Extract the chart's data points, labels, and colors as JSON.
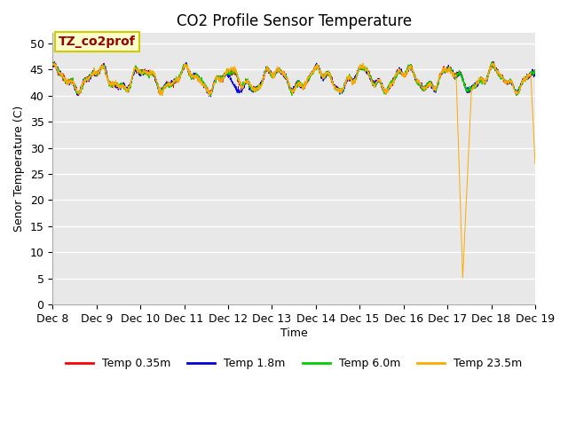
{
  "title": "CO2 Profile Sensor Temperature",
  "ylabel": "Senor Temperature (C)",
  "xlabel": "Time",
  "xlim": [
    0,
    11
  ],
  "ylim": [
    0,
    52
  ],
  "yticks": [
    0,
    5,
    10,
    15,
    20,
    25,
    30,
    35,
    40,
    45,
    50
  ],
  "xtick_labels": [
    "Dec 8",
    "Dec 9",
    "Dec 10",
    "Dec 11",
    "Dec 12",
    "Dec 13",
    "Dec 14",
    "Dec 15",
    "Dec 16",
    "Dec 17",
    "Dec 18",
    "Dec 19"
  ],
  "annotation_text": "TZ_co2prof",
  "annotation_bg": "#ffffcc",
  "annotation_border": "#cccc00",
  "colors": {
    "red": "#ff0000",
    "blue": "#0000dd",
    "green": "#00cc00",
    "orange": "#ffaa00"
  },
  "legend_labels": [
    "Temp 0.35m",
    "Temp 1.8m",
    "Temp 6.0m",
    "Temp 23.5m"
  ],
  "bg_color": "#e8e8e8",
  "fig_bg": "#ffffff",
  "title_fontsize": 12,
  "label_fontsize": 9,
  "tick_fontsize": 9,
  "drop1_start": 9.2,
  "drop1_bottom": 9.35,
  "drop1_recover": 9.55,
  "drop1_min": 5.0,
  "drop2_start": 10.9,
  "drop2_end": 11.0,
  "drop2_final": 27.0
}
